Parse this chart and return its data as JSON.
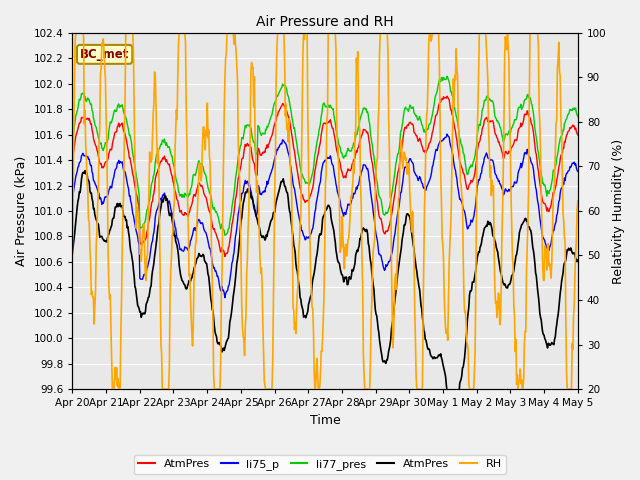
{
  "title": "Air Pressure and RH",
  "xlabel": "Time",
  "ylabel_left": "Air Pressure (kPa)",
  "ylabel_right": "Relativity Humidity (%)",
  "annotation": "BC_met",
  "ylim_left": [
    99.6,
    102.4
  ],
  "ylim_right": [
    20,
    100
  ],
  "x_tick_labels": [
    "Apr 20",
    "Apr 21",
    "Apr 22",
    "Apr 23",
    "Apr 24",
    "Apr 25",
    "Apr 26",
    "Apr 27",
    "Apr 28",
    "Apr 29",
    "Apr 30",
    "May 1",
    "May 2",
    "May 3",
    "May 4",
    "May 5"
  ],
  "legend_entries": [
    "AtmPres",
    "li75_p",
    "li77_pres",
    "AtmPres",
    "RH"
  ],
  "legend_colors": [
    "#ff0000",
    "#0000ff",
    "#00cc00",
    "#000000",
    "#ffa500"
  ],
  "plot_bg_color": "#e8e8e8",
  "fig_bg_color": "#f0f0f0",
  "grid_color": "#ffffff",
  "n_points": 720,
  "seed": 42
}
